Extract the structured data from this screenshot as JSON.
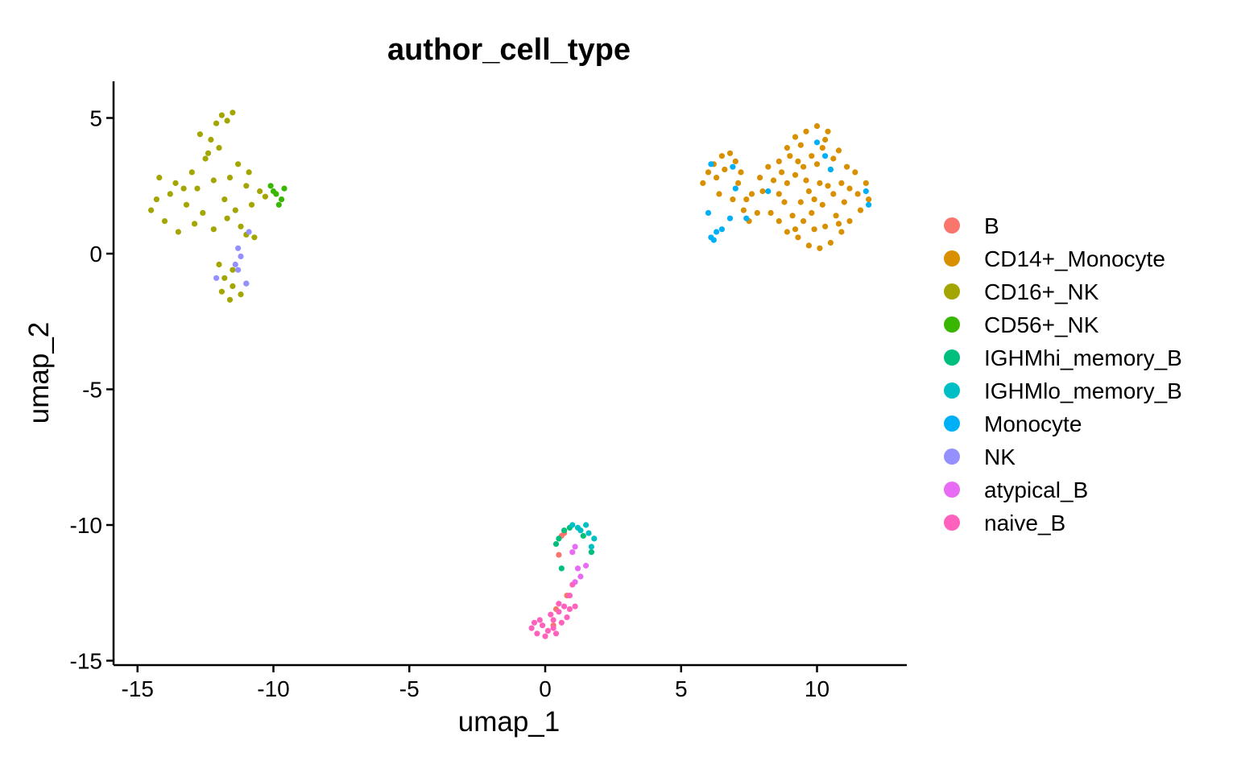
{
  "chart_data": {
    "type": "scatter",
    "title": "author_cell_type",
    "xlabel": "umap_1",
    "ylabel": "umap_2",
    "xlim": [
      -16,
      13.5
    ],
    "ylim": [
      -15.2,
      6.3
    ],
    "x_ticks": [
      -15,
      -10,
      -5,
      0,
      5,
      10
    ],
    "x_tick_labels": [
      "-15",
      "-10",
      "-5",
      "0",
      "5",
      "10"
    ],
    "y_ticks": [
      5,
      0,
      -5,
      -10,
      -15
    ],
    "y_tick_labels": [
      "5",
      "0",
      "-5",
      "-10",
      "-15"
    ],
    "grid": false,
    "legend_position": "right",
    "series": [
      {
        "name": "B",
        "color": "#F8766D",
        "points": [
          [
            0.6,
            -10.4
          ],
          [
            0.5,
            -11.1
          ],
          [
            0.8,
            -12.6
          ],
          [
            0.4,
            -13.1
          ],
          [
            0.7,
            -10.3
          ],
          [
            0.3,
            -13.7
          ]
        ]
      },
      {
        "name": "CD14+_Monocyte",
        "color": "#D89000",
        "points": [
          [
            5.8,
            2.6
          ],
          [
            6.0,
            3.0
          ],
          [
            6.2,
            3.3
          ],
          [
            6.5,
            3.6
          ],
          [
            6.8,
            3.7
          ],
          [
            7.0,
            3.4
          ],
          [
            7.2,
            3.0
          ],
          [
            6.4,
            2.2
          ],
          [
            6.9,
            2.0
          ],
          [
            7.3,
            1.6
          ],
          [
            7.5,
            1.2
          ],
          [
            7.8,
            1.5
          ],
          [
            7.6,
            2.2
          ],
          [
            7.9,
            2.8
          ],
          [
            8.2,
            3.2
          ],
          [
            8.6,
            3.4
          ],
          [
            8.9,
            3.9
          ],
          [
            9.2,
            4.3
          ],
          [
            9.6,
            4.5
          ],
          [
            10.0,
            4.7
          ],
          [
            10.4,
            4.5
          ],
          [
            10.8,
            3.8
          ],
          [
            11.1,
            3.2
          ],
          [
            11.4,
            3.0
          ],
          [
            11.8,
            2.6
          ],
          [
            11.9,
            2.0
          ],
          [
            11.6,
            1.6
          ],
          [
            11.2,
            1.2
          ],
          [
            10.9,
            0.8
          ],
          [
            10.5,
            0.4
          ],
          [
            10.1,
            0.2
          ],
          [
            9.7,
            0.3
          ],
          [
            9.3,
            0.6
          ],
          [
            8.9,
            0.8
          ],
          [
            8.6,
            1.2
          ],
          [
            8.3,
            1.5
          ],
          [
            8.6,
            2.2
          ],
          [
            8.9,
            2.6
          ],
          [
            9.2,
            2.9
          ],
          [
            9.5,
            3.2
          ],
          [
            9.8,
            3.6
          ],
          [
            10.2,
            3.9
          ],
          [
            10.5,
            3.1
          ],
          [
            10.1,
            2.6
          ],
          [
            9.7,
            2.3
          ],
          [
            9.4,
            1.9
          ],
          [
            9.8,
            1.5
          ],
          [
            10.2,
            1.8
          ],
          [
            10.6,
            2.2
          ],
          [
            10.9,
            2.6
          ],
          [
            11.2,
            2.4
          ],
          [
            10.7,
            1.4
          ],
          [
            10.3,
            1.0
          ],
          [
            9.9,
            0.9
          ],
          [
            9.5,
            1.2
          ],
          [
            9.1,
            1.4
          ],
          [
            8.8,
            1.9
          ],
          [
            9.0,
            3.6
          ],
          [
            9.4,
            4.0
          ],
          [
            10.3,
            4.2
          ],
          [
            10.0,
            3.3
          ],
          [
            10.6,
            3.5
          ],
          [
            11.0,
            1.9
          ],
          [
            11.5,
            2.2
          ],
          [
            9.6,
            2.7
          ],
          [
            6.6,
            3.1
          ],
          [
            6.3,
            2.8
          ],
          [
            7.1,
            2.6
          ],
          [
            7.4,
            2.0
          ],
          [
            8.0,
            2.3
          ],
          [
            8.4,
            2.7
          ],
          [
            9.3,
            3.4
          ],
          [
            8.7,
            3.0
          ],
          [
            9.9,
            2.0
          ],
          [
            10.4,
            2.5
          ],
          [
            10.8,
            1.1
          ],
          [
            9.2,
            0.9
          ]
        ]
      },
      {
        "name": "CD16+_NK",
        "color": "#A3A500",
        "points": [
          [
            -14.5,
            1.6
          ],
          [
            -14.2,
            2.8
          ],
          [
            -14.0,
            1.2
          ],
          [
            -13.8,
            2.2
          ],
          [
            -13.5,
            0.8
          ],
          [
            -13.2,
            1.8
          ],
          [
            -13.0,
            3.0
          ],
          [
            -12.8,
            2.4
          ],
          [
            -12.5,
            3.5
          ],
          [
            -12.3,
            4.2
          ],
          [
            -12.1,
            4.8
          ],
          [
            -11.9,
            5.1
          ],
          [
            -11.7,
            4.9
          ],
          [
            -11.5,
            5.2
          ],
          [
            -12.6,
            1.5
          ],
          [
            -12.2,
            0.9
          ],
          [
            -11.8,
            2.0
          ],
          [
            -11.6,
            2.8
          ],
          [
            -11.3,
            3.3
          ],
          [
            -11.0,
            2.5
          ],
          [
            -10.8,
            1.8
          ],
          [
            -10.5,
            2.3
          ],
          [
            -10.3,
            2.1
          ],
          [
            -11.2,
            1.0
          ],
          [
            -11.0,
            0.7
          ],
          [
            -12.0,
            -0.4
          ],
          [
            -11.8,
            -0.9
          ],
          [
            -11.5,
            -1.2
          ],
          [
            -11.2,
            -1.5
          ],
          [
            -11.0,
            -1.1
          ],
          [
            -11.6,
            -1.7
          ],
          [
            -12.4,
            3.7
          ],
          [
            -13.6,
            2.6
          ],
          [
            -14.3,
            2.0
          ],
          [
            -12.9,
            1.1
          ],
          [
            -11.4,
            1.6
          ],
          [
            -10.7,
            0.6
          ],
          [
            -12.7,
            4.4
          ],
          [
            -12.0,
            3.9
          ],
          [
            -11.5,
            -0.6
          ],
          [
            -11.9,
            -1.4
          ],
          [
            -12.2,
            2.7
          ],
          [
            -13.3,
            2.4
          ],
          [
            -10.9,
            3.0
          ],
          [
            -11.7,
            1.3
          ]
        ]
      },
      {
        "name": "CD56+_NK",
        "color": "#39B600",
        "points": [
          [
            -10.1,
            2.5
          ],
          [
            -9.9,
            2.2
          ],
          [
            -9.7,
            2.0
          ],
          [
            -9.6,
            2.4
          ],
          [
            -9.8,
            1.8
          ],
          [
            -10.0,
            2.3
          ]
        ]
      },
      {
        "name": "IGHMhi_memory_B",
        "color": "#00BF7D",
        "points": [
          [
            0.5,
            -10.5
          ],
          [
            0.7,
            -10.2
          ],
          [
            0.9,
            -10.1
          ],
          [
            1.4,
            -10.4
          ],
          [
            1.7,
            -11.0
          ],
          [
            0.4,
            -10.7
          ],
          [
            0.6,
            -11.6
          ]
        ]
      },
      {
        "name": "IGHMlo_memory_B",
        "color": "#00BFC4",
        "points": [
          [
            1.0,
            -10.0
          ],
          [
            1.3,
            -10.2
          ],
          [
            1.6,
            -10.3
          ],
          [
            1.8,
            -10.5
          ],
          [
            1.7,
            -10.8
          ],
          [
            1.2,
            -10.1
          ],
          [
            1.5,
            -10.0
          ]
        ]
      },
      {
        "name": "Monocyte",
        "color": "#00B0F6",
        "points": [
          [
            6.1,
            0.6
          ],
          [
            6.3,
            0.8
          ],
          [
            6.2,
            0.5
          ],
          [
            6.5,
            0.9
          ],
          [
            6.0,
            1.5
          ],
          [
            6.8,
            1.3
          ],
          [
            7.4,
            1.3
          ],
          [
            6.9,
            3.2
          ],
          [
            8.2,
            2.3
          ],
          [
            10.0,
            4.1
          ],
          [
            10.3,
            3.6
          ],
          [
            10.5,
            3.1
          ],
          [
            11.8,
            2.3
          ],
          [
            11.9,
            1.8
          ],
          [
            6.1,
            3.3
          ],
          [
            7.0,
            2.4
          ]
        ]
      },
      {
        "name": "NK",
        "color": "#9590FF",
        "points": [
          [
            -11.3,
            0.2
          ],
          [
            -11.2,
            -0.1
          ],
          [
            -11.4,
            -0.4
          ],
          [
            -11.0,
            -1.1
          ],
          [
            -12.1,
            -0.9
          ],
          [
            -10.9,
            0.8
          ],
          [
            -11.3,
            -0.6
          ]
        ]
      },
      {
        "name": "atypical_B",
        "color": "#E76BF3",
        "points": [
          [
            1.1,
            -10.8
          ],
          [
            1.2,
            -11.6
          ],
          [
            1.3,
            -11.9
          ],
          [
            1.5,
            -11.5
          ],
          [
            1.1,
            -12.1
          ],
          [
            1.0,
            -11.0
          ]
        ]
      },
      {
        "name": "naive_B",
        "color": "#FF62BC",
        "points": [
          [
            -0.5,
            -13.8
          ],
          [
            -0.3,
            -14.0
          ],
          [
            -0.1,
            -13.7
          ],
          [
            0.1,
            -13.9
          ],
          [
            0.3,
            -13.5
          ],
          [
            0.5,
            -13.2
          ],
          [
            0.7,
            -13.0
          ],
          [
            0.9,
            -12.6
          ],
          [
            1.0,
            -12.2
          ],
          [
            0.8,
            -13.4
          ],
          [
            0.6,
            -13.6
          ],
          [
            0.4,
            -14.0
          ],
          [
            0.2,
            -13.3
          ],
          [
            0.0,
            -14.1
          ],
          [
            -0.2,
            -13.5
          ],
          [
            0.9,
            -13.1
          ],
          [
            1.1,
            -13.0
          ],
          [
            0.5,
            -12.9
          ],
          [
            0.3,
            -13.8
          ],
          [
            -0.4,
            -13.6
          ]
        ]
      }
    ]
  }
}
